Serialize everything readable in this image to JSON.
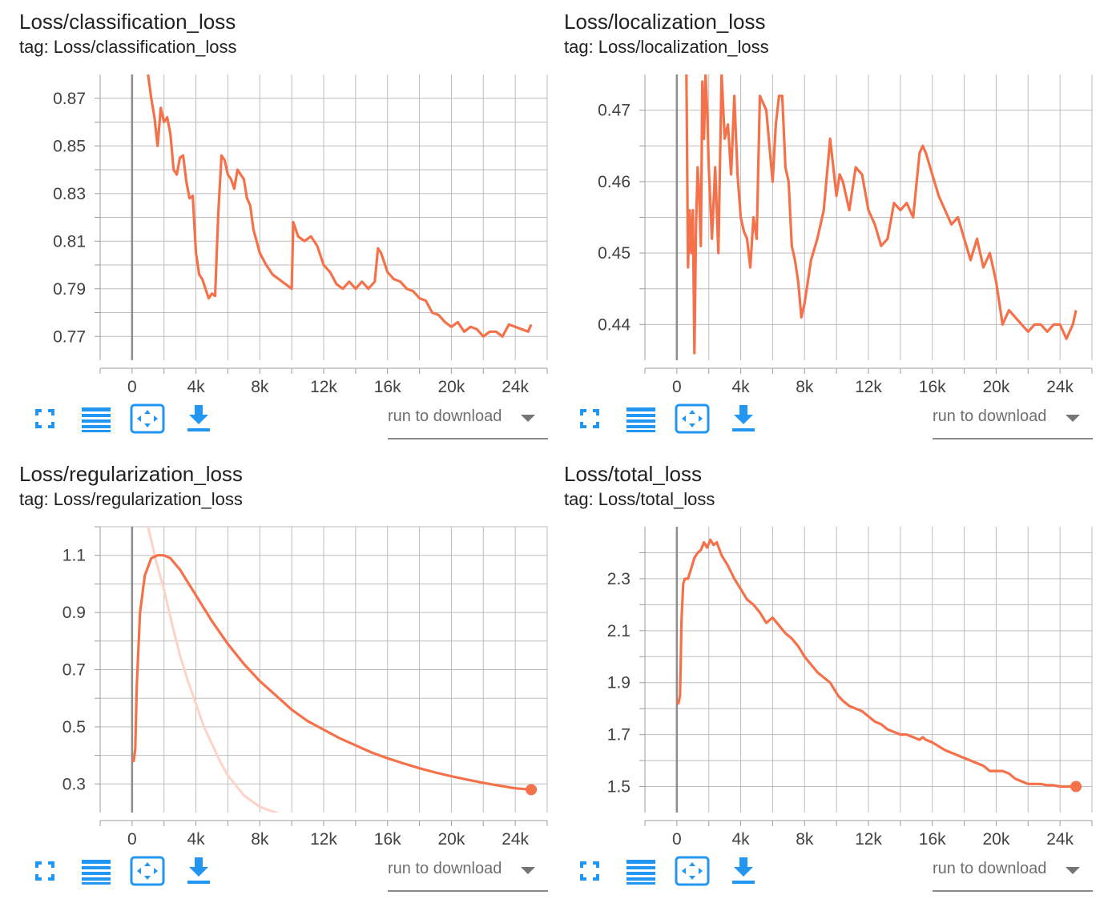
{
  "run_select": {
    "label": "run to download"
  },
  "colors": {
    "smoothed": "#f4714a",
    "raw": "#fcd3c6",
    "grid": "#bdbdbd",
    "axis": "#9e9e9e",
    "toolbar": "#2196f3"
  },
  "toolbar_icons": [
    "fullscreen-icon",
    "data-table-icon",
    "fit-domain-icon",
    "download-icon"
  ],
  "chart_data": [
    {
      "type": "line",
      "title": "Loss/classification_loss",
      "tag": "tag: Loss/classification_loss",
      "xlim": [
        -2000,
        26000
      ],
      "ylim": [
        0.76,
        0.88
      ],
      "xticks": [
        0,
        4000,
        8000,
        12000,
        16000,
        20000,
        24000
      ],
      "xtick_labels": [
        "0",
        "4k",
        "8k",
        "12k",
        "16k",
        "20k",
        "24k"
      ],
      "yticks": [
        0.77,
        0.79,
        0.81,
        0.83,
        0.85,
        0.87
      ],
      "ytick_labels": [
        "0.77",
        "0.79",
        "0.81",
        "0.83",
        "0.85",
        "0.87"
      ],
      "grid": true,
      "end_marker": false,
      "series": [
        {
          "kind": "smoothed",
          "x": [
            1000,
            1200,
            1400,
            1600,
            1800,
            2000,
            2200,
            2400,
            2600,
            2800,
            3000,
            3200,
            3400,
            3600,
            3800,
            4000,
            4200,
            4400,
            4600,
            4800,
            5000,
            5200,
            5400,
            5600,
            5800,
            6000,
            6200,
            6400,
            6600,
            6800,
            7000,
            7200,
            7400,
            7600,
            7800,
            8000,
            8400,
            8800,
            9200,
            9600,
            10000,
            10100,
            10400,
            10800,
            11200,
            11600,
            12000,
            12400,
            12800,
            13200,
            13600,
            14000,
            14400,
            14800,
            15200,
            15400,
            15600,
            16000,
            16400,
            16800,
            17200,
            17600,
            18000,
            18400,
            18800,
            19200,
            19600,
            20000,
            20400,
            20800,
            21200,
            21600,
            22000,
            22400,
            22800,
            23200,
            23600,
            24000,
            24400,
            24800,
            25000
          ],
          "y": [
            0.88,
            0.87,
            0.862,
            0.85,
            0.866,
            0.86,
            0.862,
            0.855,
            0.84,
            0.838,
            0.845,
            0.846,
            0.835,
            0.828,
            0.829,
            0.805,
            0.796,
            0.794,
            0.79,
            0.786,
            0.788,
            0.787,
            0.822,
            0.846,
            0.844,
            0.838,
            0.836,
            0.832,
            0.84,
            0.838,
            0.836,
            0.828,
            0.825,
            0.815,
            0.81,
            0.805,
            0.8,
            0.796,
            0.794,
            0.792,
            0.79,
            0.818,
            0.812,
            0.81,
            0.812,
            0.808,
            0.8,
            0.797,
            0.792,
            0.79,
            0.793,
            0.79,
            0.793,
            0.79,
            0.793,
            0.807,
            0.805,
            0.797,
            0.794,
            0.793,
            0.79,
            0.789,
            0.786,
            0.785,
            0.78,
            0.779,
            0.776,
            0.774,
            0.776,
            0.772,
            0.774,
            0.773,
            0.77,
            0.772,
            0.772,
            0.77,
            0.775,
            0.774,
            0.773,
            0.772,
            0.775
          ]
        }
      ]
    },
    {
      "type": "line",
      "title": "Loss/localization_loss",
      "tag": "tag: Loss/localization_loss",
      "xlim": [
        -2000,
        26000
      ],
      "ylim": [
        0.435,
        0.475
      ],
      "xticks": [
        0,
        4000,
        8000,
        12000,
        16000,
        20000,
        24000
      ],
      "xtick_labels": [
        "0",
        "4k",
        "8k",
        "12k",
        "16k",
        "20k",
        "24k"
      ],
      "yticks": [
        0.44,
        0.45,
        0.46,
        0.47
      ],
      "ytick_labels": [
        "0.44",
        "0.45",
        "0.46",
        "0.47"
      ],
      "grid": true,
      "end_marker": false,
      "series": [
        {
          "kind": "smoothed",
          "x": [
            600,
            700,
            800,
            900,
            1000,
            1100,
            1200,
            1300,
            1400,
            1500,
            1600,
            1700,
            1800,
            1900,
            2000,
            2200,
            2400,
            2600,
            2800,
            3000,
            3200,
            3400,
            3600,
            3800,
            4000,
            4200,
            4400,
            4600,
            4800,
            5000,
            5200,
            5400,
            5600,
            5800,
            6000,
            6200,
            6400,
            6600,
            6800,
            7000,
            7200,
            7400,
            7600,
            7800,
            8000,
            8400,
            8800,
            9200,
            9600,
            10000,
            10200,
            10400,
            10800,
            11200,
            11600,
            12000,
            12400,
            12800,
            13200,
            13600,
            14000,
            14400,
            14800,
            15200,
            15400,
            15600,
            16000,
            16400,
            16800,
            17200,
            17600,
            18000,
            18400,
            18800,
            19200,
            19600,
            20000,
            20400,
            20800,
            21200,
            21600,
            22000,
            22400,
            22800,
            23200,
            23600,
            24000,
            24400,
            24800,
            25000
          ],
          "y": [
            0.475,
            0.448,
            0.456,
            0.45,
            0.456,
            0.436,
            0.454,
            0.462,
            0.458,
            0.451,
            0.474,
            0.466,
            0.475,
            0.47,
            0.462,
            0.452,
            0.462,
            0.45,
            0.475,
            0.466,
            0.468,
            0.461,
            0.472,
            0.461,
            0.455,
            0.453,
            0.452,
            0.448,
            0.455,
            0.452,
            0.472,
            0.471,
            0.47,
            0.465,
            0.46,
            0.468,
            0.472,
            0.472,
            0.462,
            0.46,
            0.451,
            0.449,
            0.446,
            0.441,
            0.443,
            0.449,
            0.452,
            0.456,
            0.466,
            0.458,
            0.461,
            0.46,
            0.456,
            0.462,
            0.461,
            0.456,
            0.454,
            0.451,
            0.452,
            0.457,
            0.456,
            0.457,
            0.455,
            0.464,
            0.465,
            0.464,
            0.461,
            0.458,
            0.456,
            0.454,
            0.455,
            0.452,
            0.449,
            0.452,
            0.448,
            0.45,
            0.446,
            0.44,
            0.442,
            0.441,
            0.44,
            0.439,
            0.44,
            0.44,
            0.439,
            0.44,
            0.44,
            0.438,
            0.44,
            0.442
          ]
        }
      ]
    },
    {
      "type": "line",
      "title": "Loss/regularization_loss",
      "tag": "tag: Loss/regularization_loss",
      "xlim": [
        -2000,
        26000
      ],
      "ylim": [
        0.2,
        1.2
      ],
      "xticks": [
        0,
        4000,
        8000,
        12000,
        16000,
        20000,
        24000
      ],
      "xtick_labels": [
        "0",
        "4k",
        "8k",
        "12k",
        "16k",
        "20k",
        "24k"
      ],
      "yticks": [
        0.3,
        0.5,
        0.7,
        0.9,
        1.1
      ],
      "ytick_labels": [
        "0.3",
        "0.5",
        "0.7",
        "0.9",
        "1.1"
      ],
      "grid": true,
      "end_marker": true,
      "series": [
        {
          "kind": "raw",
          "x": [
            600,
            1000,
            1500,
            2000,
            2500,
            3000,
            3500,
            4000,
            4500,
            5000,
            5500,
            6000,
            7000,
            8000,
            9000,
            9500
          ],
          "y": [
            1.3,
            1.2,
            1.08,
            0.98,
            0.86,
            0.75,
            0.66,
            0.58,
            0.5,
            0.44,
            0.38,
            0.33,
            0.26,
            0.22,
            0.2,
            0.19
          ]
        },
        {
          "kind": "smoothed",
          "x": [
            0,
            100,
            200,
            300,
            500,
            800,
            1200,
            1600,
            2000,
            2400,
            3000,
            4000,
            5000,
            6000,
            7000,
            8000,
            9000,
            10000,
            11000,
            12000,
            13000,
            14000,
            15000,
            16000,
            17000,
            18000,
            19000,
            20000,
            21000,
            22000,
            23000,
            24000,
            25000
          ],
          "y": [
            0.38,
            0.38,
            0.42,
            0.65,
            0.9,
            1.03,
            1.09,
            1.1,
            1.1,
            1.09,
            1.05,
            0.96,
            0.87,
            0.79,
            0.72,
            0.66,
            0.61,
            0.56,
            0.52,
            0.49,
            0.46,
            0.435,
            0.41,
            0.39,
            0.372,
            0.355,
            0.34,
            0.327,
            0.315,
            0.304,
            0.294,
            0.285,
            0.28
          ]
        }
      ]
    },
    {
      "type": "line",
      "title": "Loss/total_loss",
      "tag": "tag: Loss/total_loss",
      "xlim": [
        -2000,
        26000
      ],
      "ylim": [
        1.4,
        2.5
      ],
      "xticks": [
        0,
        4000,
        8000,
        12000,
        16000,
        20000,
        24000
      ],
      "xtick_labels": [
        "0",
        "4k",
        "8k",
        "12k",
        "16k",
        "20k",
        "24k"
      ],
      "yticks": [
        1.5,
        1.7,
        1.9,
        2.1,
        2.3
      ],
      "ytick_labels": [
        "1.5",
        "1.7",
        "1.9",
        "2.1",
        "2.3"
      ],
      "grid": true,
      "end_marker": true,
      "series": [
        {
          "kind": "smoothed",
          "x": [
            0,
            100,
            200,
            300,
            400,
            500,
            700,
            900,
            1100,
            1300,
            1500,
            1700,
            1900,
            2100,
            2300,
            2500,
            2800,
            3200,
            3600,
            4000,
            4400,
            4800,
            5200,
            5600,
            5800,
            6000,
            6400,
            6800,
            7200,
            7600,
            8000,
            8400,
            8800,
            9200,
            9600,
            10000,
            10100,
            10400,
            10800,
            11200,
            11600,
            12000,
            12400,
            12800,
            13200,
            13600,
            14000,
            14400,
            14800,
            15200,
            15400,
            15600,
            16000,
            16800,
            17600,
            18400,
            19200,
            19600,
            20000,
            20400,
            20800,
            21200,
            21600,
            22000,
            22400,
            22800,
            23200,
            23600,
            24000,
            24400,
            24800,
            25000
          ],
          "y": [
            1.83,
            1.82,
            1.85,
            2.15,
            2.28,
            2.3,
            2.3,
            2.34,
            2.38,
            2.4,
            2.41,
            2.44,
            2.42,
            2.45,
            2.43,
            2.44,
            2.39,
            2.35,
            2.3,
            2.26,
            2.22,
            2.2,
            2.17,
            2.13,
            2.14,
            2.15,
            2.12,
            2.09,
            2.07,
            2.04,
            2.0,
            1.97,
            1.94,
            1.92,
            1.9,
            1.86,
            1.85,
            1.83,
            1.81,
            1.8,
            1.79,
            1.77,
            1.75,
            1.74,
            1.72,
            1.71,
            1.7,
            1.7,
            1.69,
            1.68,
            1.69,
            1.68,
            1.67,
            1.64,
            1.62,
            1.6,
            1.58,
            1.56,
            1.56,
            1.56,
            1.55,
            1.53,
            1.52,
            1.51,
            1.51,
            1.51,
            1.505,
            1.505,
            1.5,
            1.5,
            1.5,
            1.5
          ]
        }
      ]
    }
  ]
}
